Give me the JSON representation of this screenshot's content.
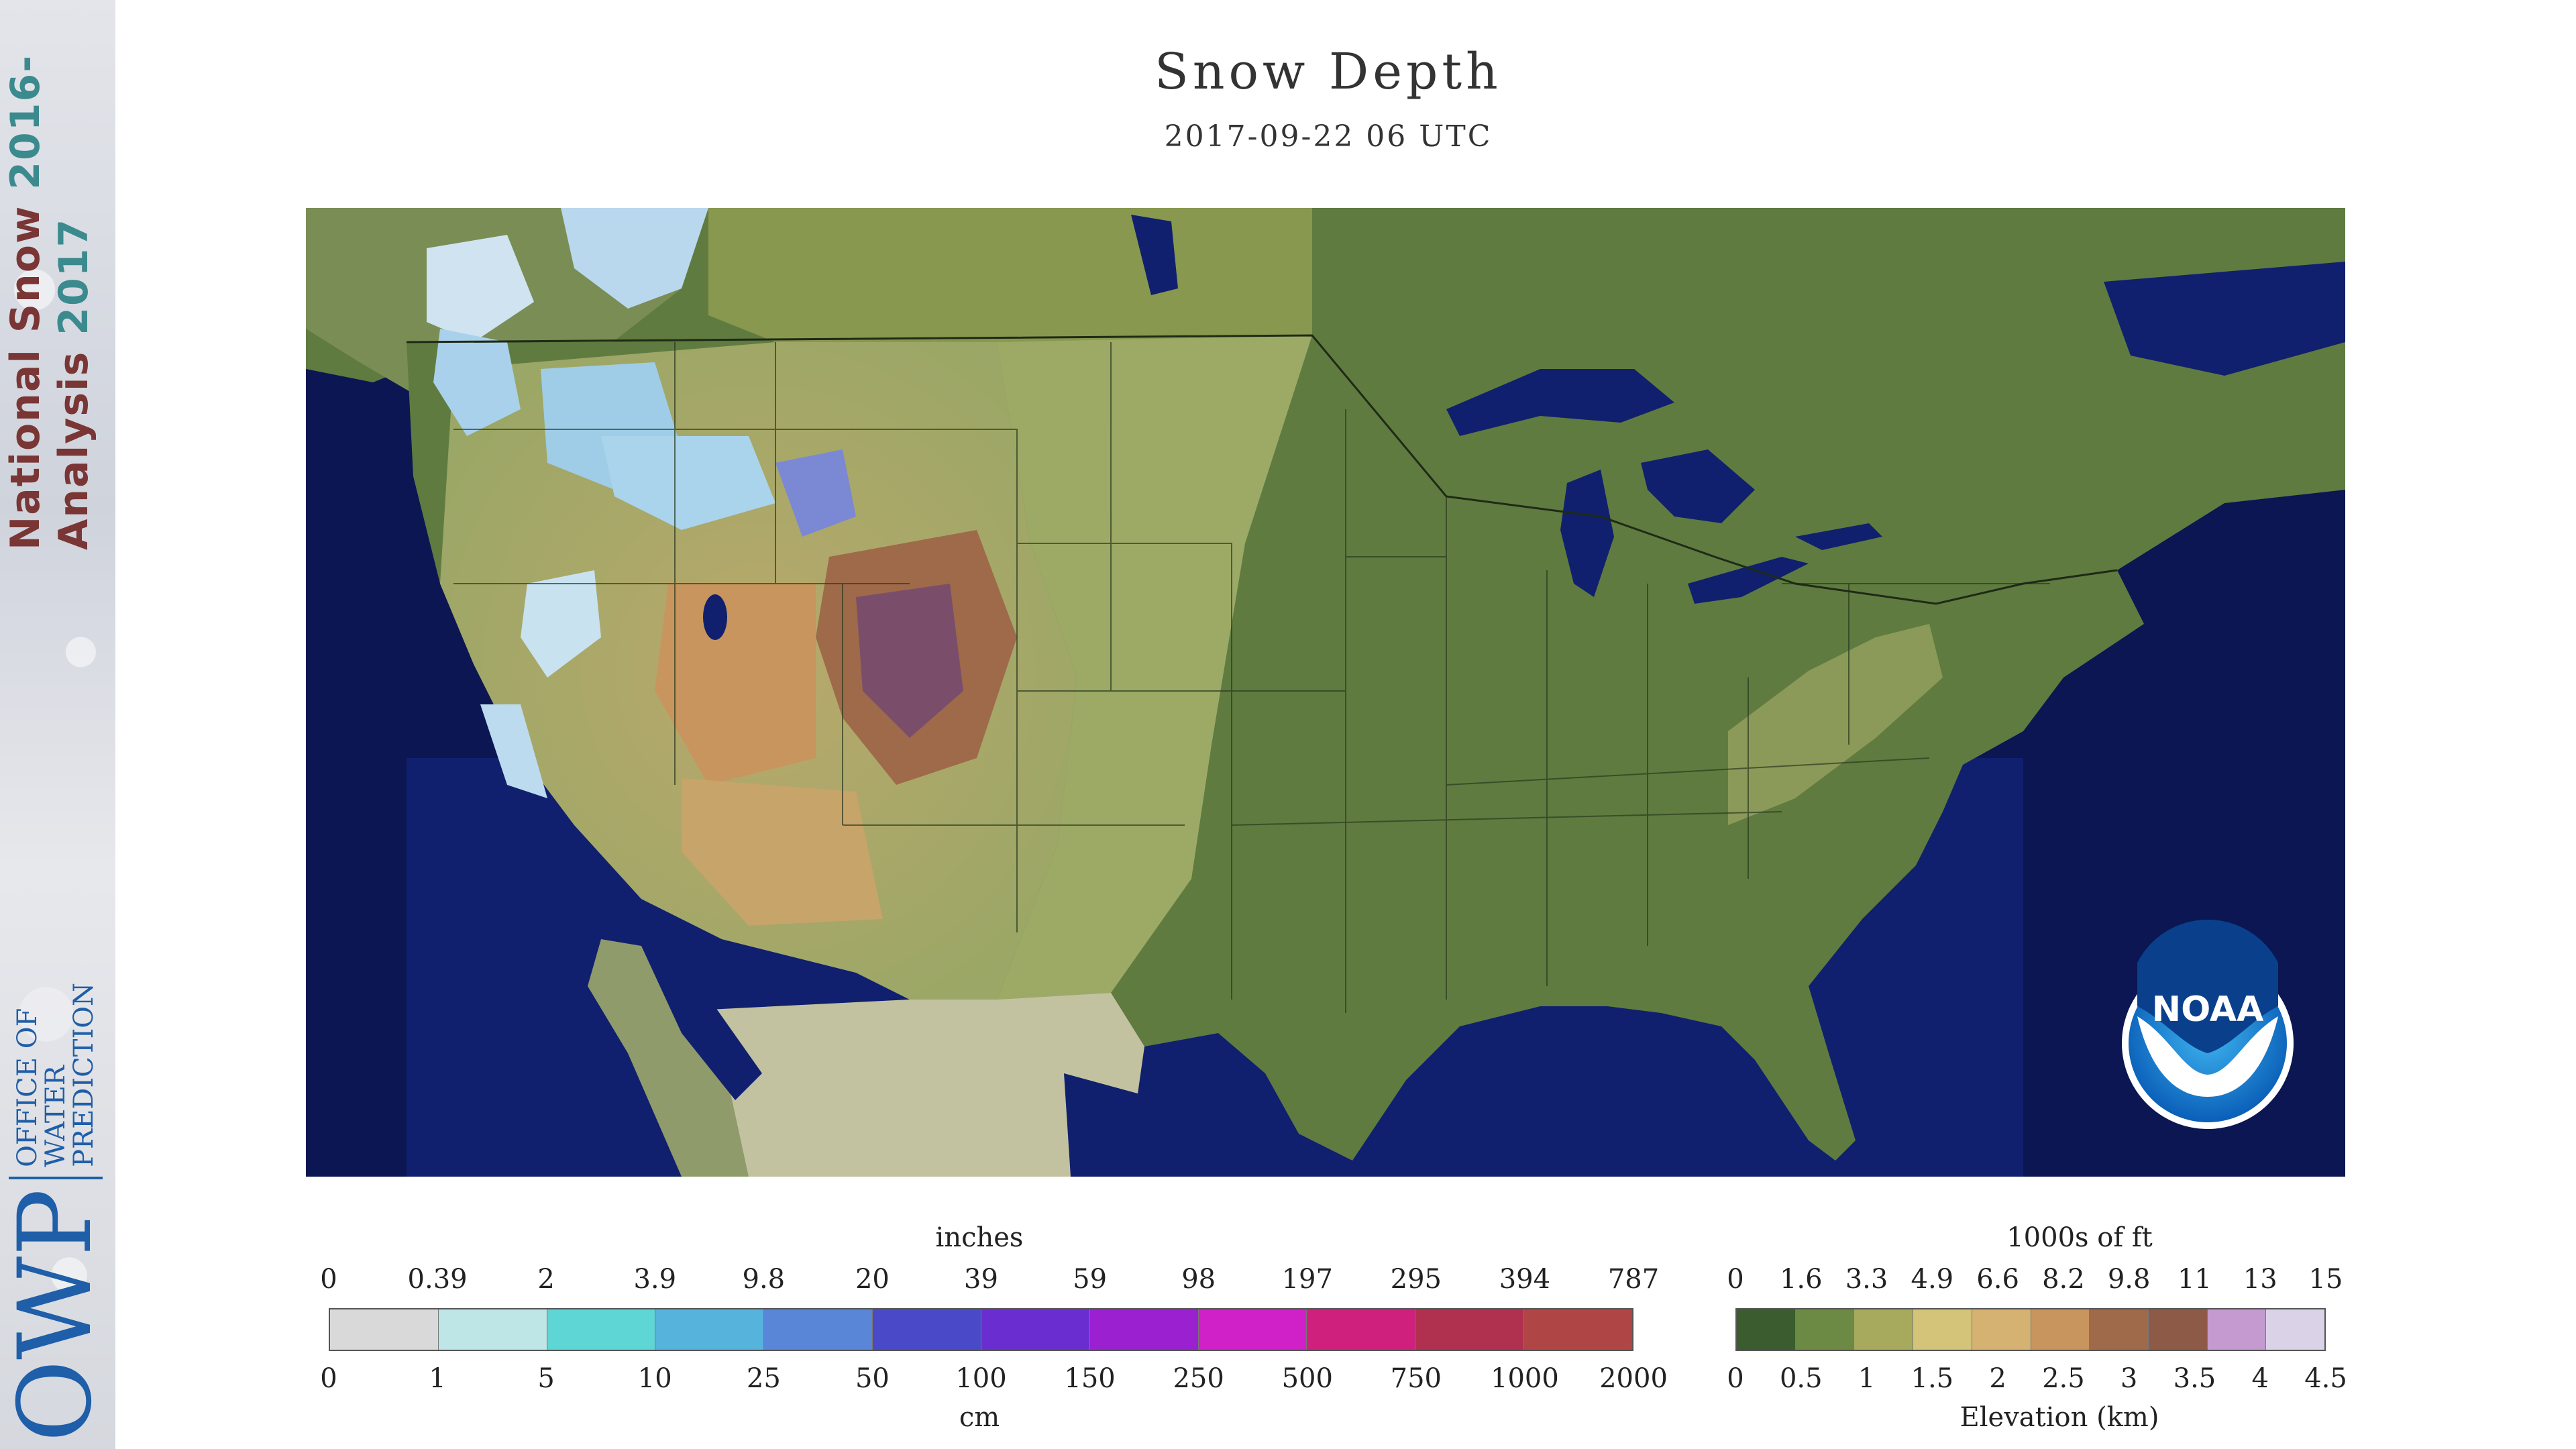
{
  "banner": {
    "line1_part1": "National Snow ",
    "line1_part2": "2016-",
    "line2_part1": "Analysis ",
    "line2_part2": "2017",
    "logo_big": "OWP",
    "logo_small": [
      "OFFICE OF",
      "WATER",
      "PREDICTION"
    ]
  },
  "map": {
    "title": "Snow Depth",
    "subtitle": "2017-09-22 06 UTC",
    "noaa_logo_text": "NOAA"
  },
  "snow_legend": {
    "unit_top": "inches",
    "unit_bottom": "cm",
    "ticks_inches": [
      "0",
      "0.39",
      "2",
      "3.9",
      "9.8",
      "20",
      "39",
      "59",
      "98",
      "197",
      "295",
      "394",
      "787"
    ],
    "ticks_cm": [
      "0",
      "1",
      "5",
      "10",
      "25",
      "50",
      "100",
      "150",
      "250",
      "500",
      "750",
      "1000",
      "2000"
    ],
    "colors": [
      "#d9d9d9",
      "#bfe6e6",
      "#5fd6d6",
      "#56b3dc",
      "#5a86d8",
      "#4a4ac8",
      "#6a2ed0",
      "#9a20d0",
      "#d020c8",
      "#d0207e",
      "#b03050",
      "#b04545"
    ]
  },
  "elevation_legend": {
    "unit_top": "1000s of ft",
    "unit_bottom": "Elevation (km)",
    "ticks_ft": [
      "0",
      "1.6",
      "3.3",
      "4.9",
      "6.6",
      "8.2",
      "9.8",
      "11",
      "13",
      "15"
    ],
    "ticks_km": [
      "0",
      "0.5",
      "1",
      "1.5",
      "2",
      "2.5",
      "3",
      "3.5",
      "4",
      "4.5"
    ],
    "colors": [
      "#3a5c2e",
      "#6c8a44",
      "#a7aa5c",
      "#d4c47a",
      "#d6b272",
      "#c8955e",
      "#9e6a4a",
      "#8e5a48",
      "#c49ad0",
      "#dad2e6"
    ]
  }
}
